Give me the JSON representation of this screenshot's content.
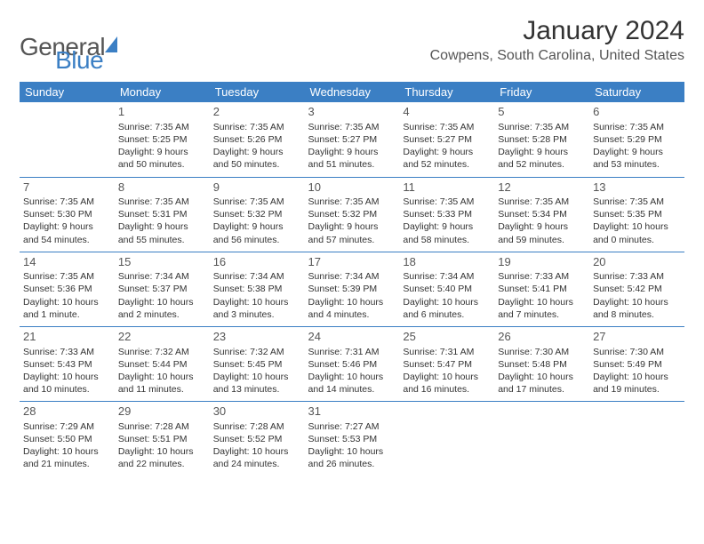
{
  "logo": {
    "part1": "General",
    "part2": "Blue"
  },
  "title": "January 2024",
  "location": "Cowpens, South Carolina, United States",
  "day_headers": [
    "Sunday",
    "Monday",
    "Tuesday",
    "Wednesday",
    "Thursday",
    "Friday",
    "Saturday"
  ],
  "header_bg": "#3b7fc4",
  "weeks": [
    [
      null,
      {
        "n": "1",
        "sr": "Sunrise: 7:35 AM",
        "ss": "Sunset: 5:25 PM",
        "dl": "Daylight: 9 hours and 50 minutes."
      },
      {
        "n": "2",
        "sr": "Sunrise: 7:35 AM",
        "ss": "Sunset: 5:26 PM",
        "dl": "Daylight: 9 hours and 50 minutes."
      },
      {
        "n": "3",
        "sr": "Sunrise: 7:35 AM",
        "ss": "Sunset: 5:27 PM",
        "dl": "Daylight: 9 hours and 51 minutes."
      },
      {
        "n": "4",
        "sr": "Sunrise: 7:35 AM",
        "ss": "Sunset: 5:27 PM",
        "dl": "Daylight: 9 hours and 52 minutes."
      },
      {
        "n": "5",
        "sr": "Sunrise: 7:35 AM",
        "ss": "Sunset: 5:28 PM",
        "dl": "Daylight: 9 hours and 52 minutes."
      },
      {
        "n": "6",
        "sr": "Sunrise: 7:35 AM",
        "ss": "Sunset: 5:29 PM",
        "dl": "Daylight: 9 hours and 53 minutes."
      }
    ],
    [
      {
        "n": "7",
        "sr": "Sunrise: 7:35 AM",
        "ss": "Sunset: 5:30 PM",
        "dl": "Daylight: 9 hours and 54 minutes."
      },
      {
        "n": "8",
        "sr": "Sunrise: 7:35 AM",
        "ss": "Sunset: 5:31 PM",
        "dl": "Daylight: 9 hours and 55 minutes."
      },
      {
        "n": "9",
        "sr": "Sunrise: 7:35 AM",
        "ss": "Sunset: 5:32 PM",
        "dl": "Daylight: 9 hours and 56 minutes."
      },
      {
        "n": "10",
        "sr": "Sunrise: 7:35 AM",
        "ss": "Sunset: 5:32 PM",
        "dl": "Daylight: 9 hours and 57 minutes."
      },
      {
        "n": "11",
        "sr": "Sunrise: 7:35 AM",
        "ss": "Sunset: 5:33 PM",
        "dl": "Daylight: 9 hours and 58 minutes."
      },
      {
        "n": "12",
        "sr": "Sunrise: 7:35 AM",
        "ss": "Sunset: 5:34 PM",
        "dl": "Daylight: 9 hours and 59 minutes."
      },
      {
        "n": "13",
        "sr": "Sunrise: 7:35 AM",
        "ss": "Sunset: 5:35 PM",
        "dl": "Daylight: 10 hours and 0 minutes."
      }
    ],
    [
      {
        "n": "14",
        "sr": "Sunrise: 7:35 AM",
        "ss": "Sunset: 5:36 PM",
        "dl": "Daylight: 10 hours and 1 minute."
      },
      {
        "n": "15",
        "sr": "Sunrise: 7:34 AM",
        "ss": "Sunset: 5:37 PM",
        "dl": "Daylight: 10 hours and 2 minutes."
      },
      {
        "n": "16",
        "sr": "Sunrise: 7:34 AM",
        "ss": "Sunset: 5:38 PM",
        "dl": "Daylight: 10 hours and 3 minutes."
      },
      {
        "n": "17",
        "sr": "Sunrise: 7:34 AM",
        "ss": "Sunset: 5:39 PM",
        "dl": "Daylight: 10 hours and 4 minutes."
      },
      {
        "n": "18",
        "sr": "Sunrise: 7:34 AM",
        "ss": "Sunset: 5:40 PM",
        "dl": "Daylight: 10 hours and 6 minutes."
      },
      {
        "n": "19",
        "sr": "Sunrise: 7:33 AM",
        "ss": "Sunset: 5:41 PM",
        "dl": "Daylight: 10 hours and 7 minutes."
      },
      {
        "n": "20",
        "sr": "Sunrise: 7:33 AM",
        "ss": "Sunset: 5:42 PM",
        "dl": "Daylight: 10 hours and 8 minutes."
      }
    ],
    [
      {
        "n": "21",
        "sr": "Sunrise: 7:33 AM",
        "ss": "Sunset: 5:43 PM",
        "dl": "Daylight: 10 hours and 10 minutes."
      },
      {
        "n": "22",
        "sr": "Sunrise: 7:32 AM",
        "ss": "Sunset: 5:44 PM",
        "dl": "Daylight: 10 hours and 11 minutes."
      },
      {
        "n": "23",
        "sr": "Sunrise: 7:32 AM",
        "ss": "Sunset: 5:45 PM",
        "dl": "Daylight: 10 hours and 13 minutes."
      },
      {
        "n": "24",
        "sr": "Sunrise: 7:31 AM",
        "ss": "Sunset: 5:46 PM",
        "dl": "Daylight: 10 hours and 14 minutes."
      },
      {
        "n": "25",
        "sr": "Sunrise: 7:31 AM",
        "ss": "Sunset: 5:47 PM",
        "dl": "Daylight: 10 hours and 16 minutes."
      },
      {
        "n": "26",
        "sr": "Sunrise: 7:30 AM",
        "ss": "Sunset: 5:48 PM",
        "dl": "Daylight: 10 hours and 17 minutes."
      },
      {
        "n": "27",
        "sr": "Sunrise: 7:30 AM",
        "ss": "Sunset: 5:49 PM",
        "dl": "Daylight: 10 hours and 19 minutes."
      }
    ],
    [
      {
        "n": "28",
        "sr": "Sunrise: 7:29 AM",
        "ss": "Sunset: 5:50 PM",
        "dl": "Daylight: 10 hours and 21 minutes."
      },
      {
        "n": "29",
        "sr": "Sunrise: 7:28 AM",
        "ss": "Sunset: 5:51 PM",
        "dl": "Daylight: 10 hours and 22 minutes."
      },
      {
        "n": "30",
        "sr": "Sunrise: 7:28 AM",
        "ss": "Sunset: 5:52 PM",
        "dl": "Daylight: 10 hours and 24 minutes."
      },
      {
        "n": "31",
        "sr": "Sunrise: 7:27 AM",
        "ss": "Sunset: 5:53 PM",
        "dl": "Daylight: 10 hours and 26 minutes."
      },
      null,
      null,
      null
    ]
  ]
}
